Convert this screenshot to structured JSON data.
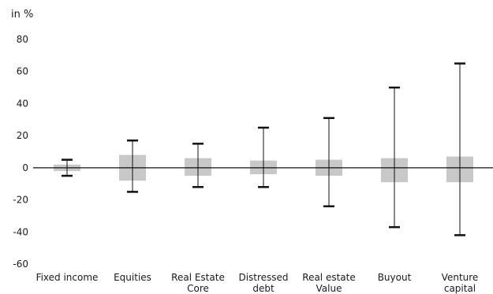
{
  "chart_data": {
    "type": "box",
    "unit_label": "in %",
    "ylim": [
      -60,
      80
    ],
    "yticks": [
      80,
      60,
      40,
      20,
      0,
      -20,
      -40,
      -60
    ],
    "grid": false,
    "box_color": "#c8c8c8",
    "whisker_color": "#111111",
    "categories": [
      {
        "label_lines": [
          "Fixed income"
        ],
        "min": -5,
        "box_low": -2,
        "box_high": 2,
        "max": 5
      },
      {
        "label_lines": [
          "Equities"
        ],
        "min": -15,
        "box_low": -8,
        "box_high": 8,
        "max": 17
      },
      {
        "label_lines": [
          "Real Estate",
          "Core"
        ],
        "min": -12,
        "box_low": -5,
        "box_high": 6,
        "max": 15
      },
      {
        "label_lines": [
          "Distressed",
          "debt"
        ],
        "min": -12,
        "box_low": -4,
        "box_high": 4.5,
        "max": 25
      },
      {
        "label_lines": [
          "Real estate",
          "Value"
        ],
        "min": -24,
        "box_low": -5,
        "box_high": 5,
        "max": 31
      },
      {
        "label_lines": [
          "Buyout"
        ],
        "min": -37,
        "box_low": -9,
        "box_high": 6,
        "max": 50
      },
      {
        "label_lines": [
          "Venture",
          "capital"
        ],
        "min": -42,
        "box_low": -9,
        "box_high": 7,
        "max": 65
      }
    ]
  }
}
